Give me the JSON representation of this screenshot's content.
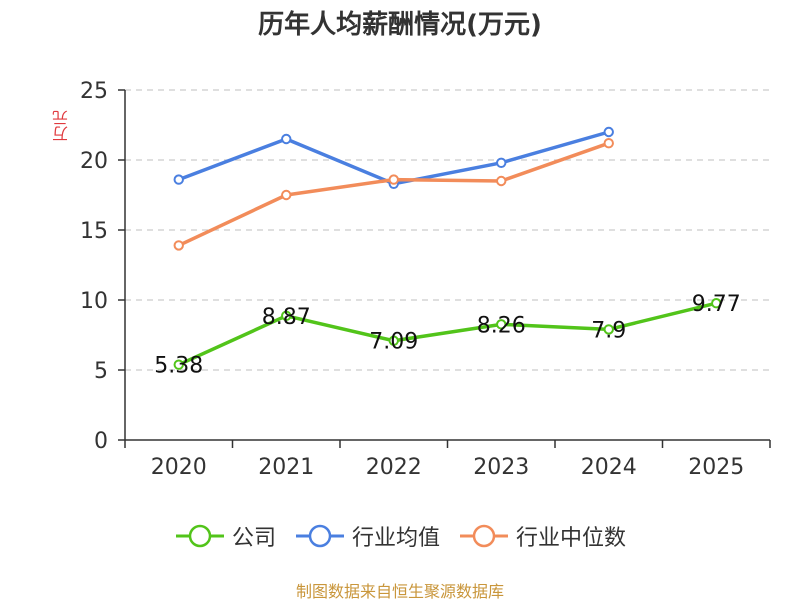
{
  "chart_data": {
    "type": "line",
    "title": "历年人均薪酬情况(万元)",
    "ylabel": "万元",
    "xlabel": "",
    "categories": [
      "2020",
      "2021",
      "2022",
      "2023",
      "2024",
      "2025"
    ],
    "ylim": [
      0,
      25
    ],
    "yticks": [
      0,
      5,
      10,
      15,
      20,
      25
    ],
    "grid": true,
    "legend_position": "bottom",
    "series": [
      {
        "name": "公司",
        "color": "#52c41a",
        "values": [
          5.38,
          8.87,
          7.09,
          8.26,
          7.9,
          9.77
        ],
        "labels": [
          "5.38",
          "8.87",
          "7.09",
          "8.26",
          "7.9",
          "9.77"
        ],
        "show_labels": true
      },
      {
        "name": "行业均值",
        "color": "#4a7fe0",
        "values": [
          18.6,
          21.5,
          18.3,
          19.8,
          22.0,
          null
        ],
        "show_labels": false
      },
      {
        "name": "行业中位数",
        "color": "#f28c5a",
        "values": [
          13.9,
          17.5,
          18.6,
          18.5,
          21.2,
          null
        ],
        "show_labels": false
      }
    ]
  },
  "source": "制图数据来自恒生聚源数据库"
}
